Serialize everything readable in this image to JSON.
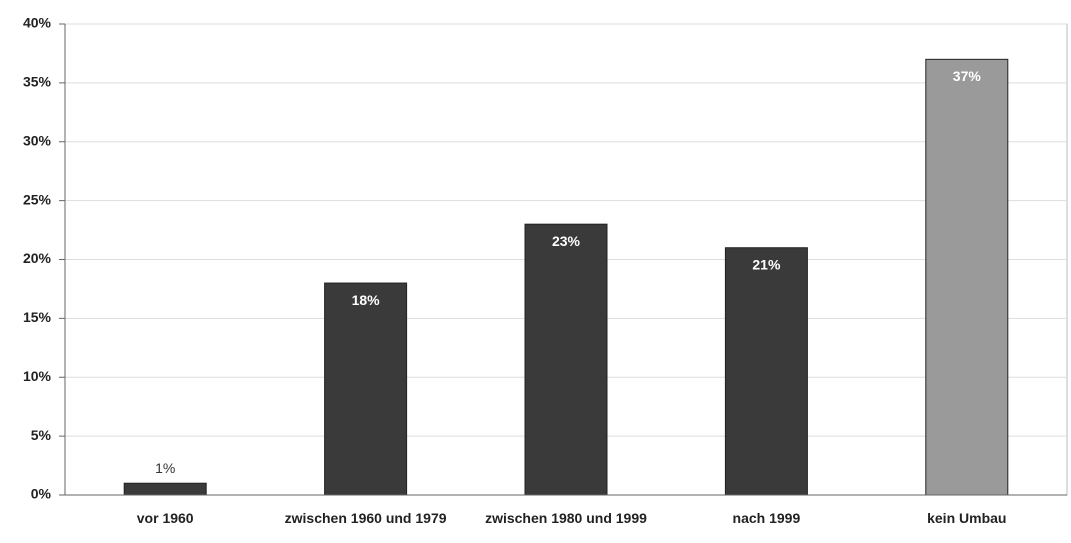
{
  "chart_data": {
    "type": "bar",
    "categories": [
      "vor 1960",
      "zwischen 1960 und 1979",
      "zwischen 1980 und 1999",
      "nach 1999",
      "kein Umbau"
    ],
    "values": [
      1,
      18,
      23,
      21,
      37
    ],
    "value_labels": [
      "1%",
      "18%",
      "23%",
      "21%",
      "37%"
    ],
    "colors": [
      "#3a3a3a",
      "#3a3a3a",
      "#3a3a3a",
      "#3a3a3a",
      "#9a9a9a"
    ],
    "ylim": [
      0,
      40
    ],
    "yticks": [
      {
        "value": 0,
        "label": "0%"
      },
      {
        "value": 5,
        "label": "5%"
      },
      {
        "value": 10,
        "label": "10%"
      },
      {
        "value": 15,
        "label": "15%"
      },
      {
        "value": 20,
        "label": "20%"
      },
      {
        "value": 25,
        "label": "25%"
      },
      {
        "value": 30,
        "label": "30%"
      },
      {
        "value": 35,
        "label": "35%"
      },
      {
        "value": 40,
        "label": "40%"
      }
    ],
    "grid": true
  }
}
